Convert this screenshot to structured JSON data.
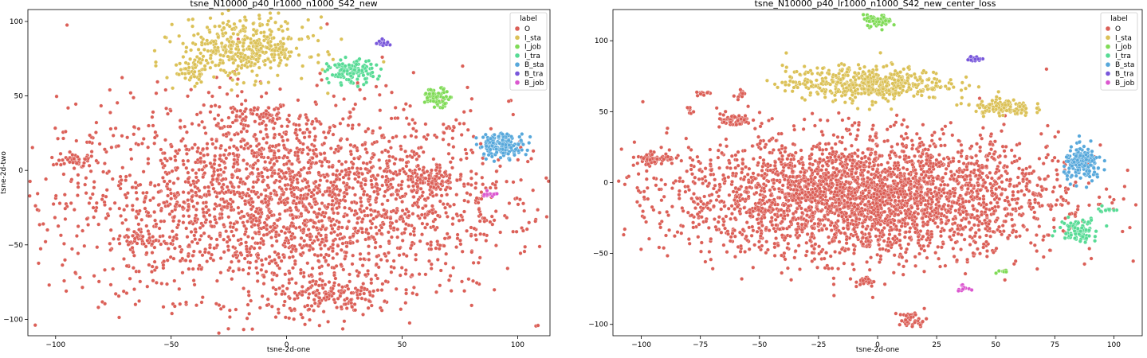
{
  "chart_data": [
    {
      "type": "scatter",
      "title": "tsne_N10000_p40_lr1000_n1000_S42_new",
      "xlabel": "tsne-2d-one",
      "ylabel": "tsne-2d-two",
      "xlim": [
        -112,
        114
      ],
      "ylim": [
        -111,
        108
      ],
      "xticks": [
        -100,
        -50,
        0,
        50,
        100
      ],
      "yticks": [
        -100,
        -50,
        0,
        50,
        100
      ],
      "legend": {
        "title": "label",
        "position": "top-right",
        "entries": [
          "O",
          "I_sta",
          "I_job",
          "I_tra",
          "B_sta",
          "B_tra",
          "B_job"
        ]
      },
      "colors": {
        "O": "#db5f57",
        "I_sta": "#dbc157",
        "I_job": "#80db57",
        "I_tra": "#57db95",
        "B_sta": "#57a8db",
        "B_tra": "#7857db",
        "B_job": "#db57cf"
      },
      "clusters": [
        {
          "label": "O",
          "x": 0,
          "y": -20,
          "sx": 48,
          "sy": 33,
          "n": 2600
        },
        {
          "label": "O",
          "x": -92,
          "y": 7,
          "sx": 4,
          "sy": 3,
          "n": 45
        },
        {
          "label": "O",
          "x": -63,
          "y": -46,
          "sx": 4,
          "sy": 3,
          "n": 40
        },
        {
          "label": "O",
          "x": 62,
          "y": -8,
          "sx": 5,
          "sy": 6,
          "n": 90
        },
        {
          "label": "O",
          "x": 20,
          "y": -85,
          "sx": 14,
          "sy": 6,
          "n": 160
        },
        {
          "label": "O",
          "x": -12,
          "y": 38,
          "sx": 7,
          "sy": 3,
          "n": 60
        },
        {
          "label": "I_sta",
          "x": -18,
          "y": 82,
          "sx": 14,
          "sy": 10,
          "n": 420
        },
        {
          "label": "I_sta",
          "x": -41,
          "y": 66,
          "sx": 3,
          "sy": 4,
          "n": 40
        },
        {
          "label": "I_tra",
          "x": 28,
          "y": 66,
          "sx": 5,
          "sy": 4,
          "n": 130
        },
        {
          "label": "I_job",
          "x": 65,
          "y": 49,
          "sx": 3,
          "sy": 3,
          "n": 80
        },
        {
          "label": "B_tra",
          "x": 42,
          "y": 86,
          "sx": 1.2,
          "sy": 1.2,
          "n": 18
        },
        {
          "label": "B_sta",
          "x": 93,
          "y": 17,
          "sx": 5,
          "sy": 4,
          "n": 160
        },
        {
          "label": "B_job",
          "x": 88,
          "y": -16,
          "sx": 1.5,
          "sy": 1,
          "n": 14
        }
      ]
    },
    {
      "type": "scatter",
      "title": "tsne_N10000_p40_lr1000_n1000_S42_new_center_loss",
      "xlabel": "tsne-2d-one",
      "ylabel": "",
      "xlim": [
        -112,
        112
      ],
      "ylim": [
        -108,
        122
      ],
      "xticks": [
        -100,
        -75,
        -50,
        -25,
        0,
        25,
        50,
        75,
        100
      ],
      "yticks": [
        -100,
        -50,
        0,
        50,
        100
      ],
      "legend": {
        "title": "label",
        "position": "top-right",
        "entries": [
          "O",
          "I_sta",
          "I_job",
          "I_tra",
          "B_sta",
          "B_tra",
          "B_job"
        ]
      },
      "colors": {
        "O": "#db5f57",
        "I_sta": "#dbc157",
        "I_job": "#80db57",
        "I_tra": "#57db95",
        "B_sta": "#57a8db",
        "B_tra": "#7857db",
        "B_job": "#db57cf"
      },
      "clusters": [
        {
          "label": "O",
          "x": -5,
          "y": -10,
          "sx": 40,
          "sy": 21,
          "n": 3200
        },
        {
          "label": "O",
          "x": -94,
          "y": 17,
          "sx": 4,
          "sy": 2,
          "n": 70
        },
        {
          "label": "O",
          "x": -61,
          "y": 44,
          "sx": 4,
          "sy": 2,
          "n": 60
        },
        {
          "label": "O",
          "x": -74,
          "y": 63,
          "sx": 1.2,
          "sy": 1,
          "n": 15
        },
        {
          "label": "O",
          "x": -58,
          "y": 63,
          "sx": 1,
          "sy": 1.5,
          "n": 12
        },
        {
          "label": "O",
          "x": -80,
          "y": 51,
          "sx": 1,
          "sy": 1,
          "n": 8
        },
        {
          "label": "O",
          "x": 15,
          "y": -97,
          "sx": 3,
          "sy": 3,
          "n": 40
        },
        {
          "label": "O",
          "x": -5,
          "y": -70,
          "sx": 2,
          "sy": 2,
          "n": 20
        },
        {
          "label": "I_sta",
          "x": -5,
          "y": 70,
          "sx": 17,
          "sy": 6,
          "n": 500
        },
        {
          "label": "I_sta",
          "x": 53,
          "y": 53,
          "sx": 6,
          "sy": 3,
          "n": 120
        },
        {
          "label": "I_job",
          "x": 0,
          "y": 114,
          "sx": 3,
          "sy": 2,
          "n": 60
        },
        {
          "label": "I_job",
          "x": 53,
          "y": -63,
          "sx": 1,
          "sy": 1,
          "n": 8
        },
        {
          "label": "B_tra",
          "x": 41,
          "y": 87,
          "sx": 1.5,
          "sy": 1,
          "n": 18
        },
        {
          "label": "B_sta",
          "x": 87,
          "y": 13,
          "sx": 4,
          "sy": 6,
          "n": 180
        },
        {
          "label": "I_tra",
          "x": 85,
          "y": -33,
          "sx": 4,
          "sy": 4,
          "n": 90
        },
        {
          "label": "I_tra",
          "x": 96,
          "y": -19,
          "sx": 2,
          "sy": 1,
          "n": 12
        },
        {
          "label": "B_job",
          "x": 36,
          "y": -74,
          "sx": 1.2,
          "sy": 1,
          "n": 12
        }
      ]
    }
  ]
}
